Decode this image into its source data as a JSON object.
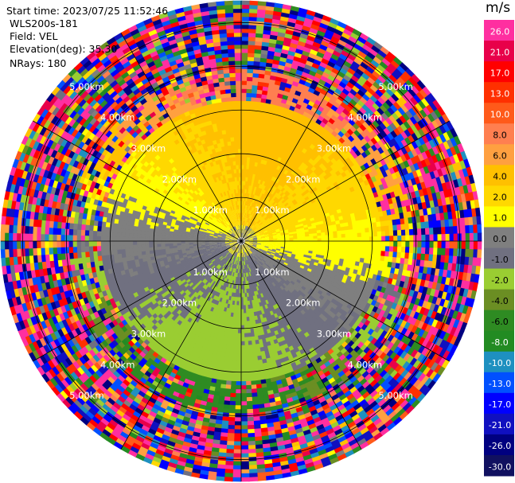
{
  "info": {
    "start_time": "Start time: 2023/07/25 11:52:46",
    "site": "WLS200s-181",
    "field": "Field: VEL",
    "elevation": "Elevation(deg): 35.30",
    "nrays": "NRays: 180"
  },
  "colorbar": {
    "unit": "m/s",
    "ticks": [
      "26.0",
      "21.0",
      "17.0",
      "13.0",
      "10.0",
      "8.0",
      "6.0",
      "4.0",
      "2.0",
      "1.0",
      "0.0",
      "-1.0",
      "-2.0",
      "-4.0",
      "-6.0",
      "-8.0",
      "-10.0",
      "-13.0",
      "-17.0",
      "-21.0",
      "-26.0",
      "-30.0"
    ],
    "colors": [
      "#ff2fa0",
      "#e8004a",
      "#ff0000",
      "#ff3000",
      "#ff5a1a",
      "#ff7f50",
      "#ffa040",
      "#ffc000",
      "#ffd800",
      "#ffff00",
      "#7f7f7f",
      "#707080",
      "#9acd32",
      "#6b8e23",
      "#2e8b22",
      "#228b22",
      "#1e90c0",
      "#0050ff",
      "#0000ff",
      "#1010c0",
      "#000080",
      "#101060"
    ]
  },
  "chart_data": {
    "type": "heatmap",
    "projection": "polar PPI",
    "field": "VEL",
    "units": "m/s",
    "nrays": 180,
    "elevation_deg": 35.3,
    "range_rings_km": [
      1.0,
      2.0,
      3.0,
      4.0,
      5.0
    ],
    "ring_labels": [
      "1.00km",
      "2.00km",
      "3.00km",
      "4.00km",
      "5.00km"
    ],
    "spoke_angles_deg": [
      0,
      30,
      60,
      90,
      120,
      150,
      180,
      210,
      240,
      270,
      300,
      330
    ],
    "clim": [
      -30,
      30
    ],
    "max_range_km": 5.5
  }
}
